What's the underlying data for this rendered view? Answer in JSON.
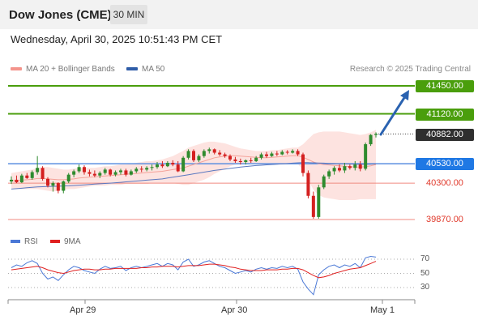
{
  "header": {
    "instrument": "Dow Jones (CME)",
    "interval": "30 MIN",
    "datetime": "Wednesday, April 30, 2025 10:51:43 PM CET"
  },
  "legend": {
    "bollinger": {
      "label": "MA 20 + Bollinger Bands",
      "color": "#f4948c"
    },
    "ma50": {
      "label": "MA 50",
      "color": "#2f5da8"
    },
    "credit": "Research © 2025 Trading Central"
  },
  "levels": [
    {
      "name": "resistance-2",
      "value": "41450.00",
      "kind": "green"
    },
    {
      "name": "resistance-1",
      "value": "41120.00",
      "kind": "green"
    },
    {
      "name": "last-price",
      "value": "40882.00",
      "kind": "black"
    },
    {
      "name": "pivot",
      "value": "40530.00",
      "kind": "blue"
    },
    {
      "name": "support-1",
      "value": "40300.00",
      "kind": "red"
    },
    {
      "name": "support-2",
      "value": "39870.00",
      "kind": "red"
    }
  ],
  "rsi": {
    "rsi_label": "RSI",
    "rsi_color": "#4a78d6",
    "ma_label": "9MA",
    "ma_color": "#e02020",
    "ticks": [
      "70",
      "50",
      "30"
    ]
  },
  "xaxis": {
    "ticks": [
      "Apr 29",
      "Apr 30",
      "May 1"
    ]
  },
  "colors": {
    "up": "#2e8b2e",
    "down": "#d42020",
    "arrow": "#2a62b0",
    "band": "#fde3e0"
  },
  "chart_data": {
    "type": "candlestick",
    "yunit": "price",
    "ohlc": [
      [
        40320,
        40380,
        40290,
        40340
      ],
      [
        40340,
        40390,
        40300,
        40310
      ],
      [
        40310,
        40410,
        40300,
        40390
      ],
      [
        40390,
        40420,
        40350,
        40360
      ],
      [
        40360,
        40450,
        40340,
        40430
      ],
      [
        40430,
        40620,
        40400,
        40480
      ],
      [
        40480,
        40500,
        40330,
        40350
      ],
      [
        40350,
        40370,
        40250,
        40270
      ],
      [
        40270,
        40320,
        40200,
        40300
      ],
      [
        40300,
        40310,
        40180,
        40210
      ],
      [
        40210,
        40330,
        40180,
        40320
      ],
      [
        40320,
        40420,
        40300,
        40400
      ],
      [
        40400,
        40460,
        40370,
        40440
      ],
      [
        40440,
        40520,
        40420,
        40490
      ],
      [
        40490,
        40510,
        40400,
        40430
      ],
      [
        40430,
        40460,
        40380,
        40410
      ],
      [
        40410,
        40450,
        40370,
        40390
      ],
      [
        40390,
        40440,
        40360,
        40420
      ],
      [
        40420,
        40480,
        40400,
        40460
      ],
      [
        40460,
        40470,
        40380,
        40400
      ],
      [
        40400,
        40450,
        40380,
        40430
      ],
      [
        40430,
        40470,
        40400,
        40450
      ],
      [
        40450,
        40470,
        40380,
        40400
      ],
      [
        40400,
        40460,
        40390,
        40440
      ],
      [
        40440,
        40490,
        40420,
        40470
      ],
      [
        40470,
        40500,
        40430,
        40460
      ],
      [
        40460,
        40500,
        40440,
        40480
      ],
      [
        40480,
        40520,
        40450,
        40490
      ],
      [
        40490,
        40550,
        40470,
        40520
      ],
      [
        40520,
        40560,
        40480,
        40500
      ],
      [
        40500,
        40560,
        40490,
        40540
      ],
      [
        40540,
        40570,
        40500,
        40520
      ],
      [
        40520,
        40560,
        40430,
        40440
      ],
      [
        40440,
        40620,
        40430,
        40600
      ],
      [
        40600,
        40700,
        40580,
        40680
      ],
      [
        40680,
        40700,
        40550,
        40570
      ],
      [
        40570,
        40640,
        40550,
        40620
      ],
      [
        40620,
        40700,
        40600,
        40680
      ],
      [
        40680,
        40720,
        40650,
        40700
      ],
      [
        40700,
        40710,
        40640,
        40660
      ],
      [
        40660,
        40690,
        40620,
        40640
      ],
      [
        40640,
        40660,
        40600,
        40620
      ],
      [
        40620,
        40640,
        40560,
        40580
      ],
      [
        40580,
        40610,
        40540,
        40560
      ],
      [
        40560,
        40590,
        40520,
        40550
      ],
      [
        40550,
        40580,
        40520,
        40570
      ],
      [
        40570,
        40600,
        40540,
        40560
      ],
      [
        40560,
        40620,
        40550,
        40600
      ],
      [
        40600,
        40660,
        40580,
        40640
      ],
      [
        40640,
        40670,
        40600,
        40620
      ],
      [
        40620,
        40670,
        40610,
        40650
      ],
      [
        40650,
        40680,
        40620,
        40640
      ],
      [
        40640,
        40690,
        40630,
        40670
      ],
      [
        40670,
        40690,
        40640,
        40660
      ],
      [
        40660,
        40700,
        40650,
        40680
      ],
      [
        40680,
        40700,
        40620,
        40640
      ],
      [
        40640,
        40660,
        40380,
        40420
      ],
      [
        40420,
        40450,
        40120,
        40150
      ],
      [
        40150,
        40200,
        39880,
        39900
      ],
      [
        39900,
        40280,
        39880,
        40250
      ],
      [
        40250,
        40400,
        40230,
        40380
      ],
      [
        40380,
        40460,
        40350,
        40440
      ],
      [
        40440,
        40500,
        40400,
        40480
      ],
      [
        40480,
        40520,
        40430,
        40450
      ],
      [
        40450,
        40540,
        40420,
        40500
      ],
      [
        40500,
        40520,
        40460,
        40480
      ],
      [
        40480,
        40560,
        40450,
        40520
      ],
      [
        40520,
        40560,
        40440,
        40470
      ],
      [
        40470,
        40780,
        40450,
        40760
      ],
      [
        40760,
        40880,
        40740,
        40870
      ],
      [
        40870,
        40900,
        40840,
        40882
      ]
    ],
    "rsi": [
      58,
      62,
      60,
      65,
      68,
      64,
      50,
      42,
      45,
      40,
      48,
      55,
      60,
      58,
      54,
      52,
      50,
      56,
      60,
      57,
      58,
      60,
      54,
      58,
      60,
      58,
      60,
      62,
      64,
      60,
      64,
      62,
      55,
      66,
      70,
      60,
      62,
      66,
      68,
      64,
      60,
      58,
      54,
      50,
      52,
      54,
      52,
      56,
      58,
      56,
      58,
      57,
      60,
      58,
      60,
      56,
      38,
      28,
      20,
      48,
      55,
      60,
      62,
      58,
      62,
      60,
      64,
      58,
      72,
      74,
      73
    ],
    "rsi_ma": [
      55,
      56,
      57,
      58,
      59,
      60,
      58,
      55,
      53,
      51,
      50,
      52,
      54,
      55,
      56,
      56,
      55,
      55,
      56,
      56,
      57,
      57,
      57,
      57,
      57,
      58,
      58,
      59,
      59,
      60,
      60,
      60,
      59,
      60,
      61,
      61,
      61,
      62,
      63,
      63,
      62,
      61,
      59,
      58,
      56,
      55,
      54,
      54,
      54,
      55,
      55,
      55,
      56,
      56,
      57,
      57,
      55,
      51,
      47,
      44,
      45,
      47,
      50,
      52,
      54,
      56,
      57,
      58,
      61,
      64,
      67
    ],
    "ma20": [
      40330,
      40330,
      40335,
      40340,
      40345,
      40355,
      40355,
      40350,
      40345,
      40340,
      40340,
      40345,
      40350,
      40360,
      40365,
      40370,
      40375,
      40380,
      40385,
      40390,
      40395,
      40400,
      40405,
      40410,
      40415,
      40420,
      40425,
      40430,
      40435,
      40440,
      40450,
      40460,
      40470,
      40480,
      40500,
      40520,
      40540,
      40560,
      40580,
      40600,
      40610,
      40620,
      40625,
      40625,
      40620,
      40615,
      40610,
      40605,
      40600,
      40600,
      40605,
      40610,
      40615,
      40620,
      40625,
      40625,
      40605,
      40580,
      40550,
      40530,
      40520,
      40515,
      40510,
      40505,
      40500,
      40495,
      40490,
      40490,
      40495,
      40505,
      40520
    ],
    "bb_upper": [
      40420,
      40430,
      40440,
      40450,
      40460,
      40480,
      40490,
      40490,
      40480,
      40470,
      40460,
      40460,
      40470,
      40480,
      40480,
      40480,
      40480,
      40490,
      40500,
      40500,
      40510,
      40520,
      40520,
      40530,
      40540,
      40550,
      40560,
      40560,
      40570,
      40580,
      40600,
      40620,
      40650,
      40680,
      40720,
      40740,
      40760,
      40780,
      40790,
      40790,
      40780,
      40770,
      40750,
      40730,
      40710,
      40700,
      40690,
      40680,
      40680,
      40680,
      40690,
      40690,
      40700,
      40710,
      40720,
      40720,
      40760,
      40820,
      40880,
      40900,
      40910,
      40910,
      40910,
      40910,
      40900,
      40890,
      40880,
      40870,
      40880,
      40900,
      40930
    ],
    "bb_lower": [
      40240,
      40230,
      40230,
      40230,
      40230,
      40230,
      40220,
      40210,
      40200,
      40210,
      40220,
      40230,
      40230,
      40240,
      40250,
      40260,
      40270,
      40270,
      40270,
      40280,
      40280,
      40280,
      40290,
      40290,
      40290,
      40290,
      40290,
      40300,
      40300,
      40300,
      40300,
      40300,
      40290,
      40280,
      40280,
      40300,
      40320,
      40340,
      40370,
      40410,
      40440,
      40470,
      40500,
      40520,
      40530,
      40530,
      40530,
      40530,
      40520,
      40520,
      40520,
      40530,
      40530,
      40530,
      40530,
      40530,
      40450,
      40340,
      40220,
      40160,
      40130,
      40120,
      40110,
      40100,
      40100,
      40100,
      40100,
      40110,
      40110,
      40110,
      40110
    ],
    "ma50": [
      40230,
      40235,
      40240,
      40245,
      40250,
      40255,
      40258,
      40260,
      40262,
      40264,
      40266,
      40268,
      40272,
      40276,
      40280,
      40284,
      40288,
      40292,
      40296,
      40300,
      40305,
      40310,
      40315,
      40320,
      40325,
      40330,
      40335,
      40340,
      40345,
      40350,
      40360,
      40370,
      40380,
      40390,
      40400,
      40410,
      40420,
      40430,
      40440,
      40450,
      40458,
      40466,
      40474,
      40482,
      40490,
      40496,
      40502,
      40508,
      40512,
      40516,
      40520,
      40524,
      40528,
      40532,
      40536,
      40540,
      40542,
      40542,
      40540,
      40538,
      40536,
      40534,
      40532,
      40530,
      40528,
      40526,
      40524,
      40522,
      40522,
      40524,
      40528
    ],
    "levels": [
      41450,
      41120,
      40882,
      40530,
      40300,
      39870
    ],
    "x_ticks": [
      "Apr 29",
      "Apr 30",
      "May 1"
    ],
    "rsi_ticks": [
      70,
      50,
      30
    ]
  }
}
